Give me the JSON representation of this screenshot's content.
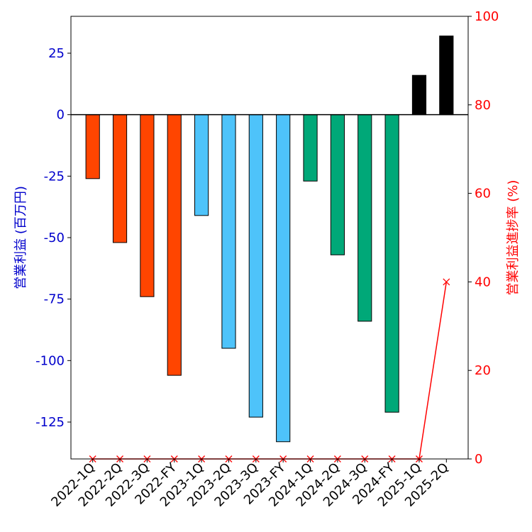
{
  "chart_data": {
    "type": "bar",
    "categories": [
      "2022-1Q",
      "2022-2Q",
      "2022-3Q",
      "2022-FY",
      "2023-1Q",
      "2023-2Q",
      "2023-3Q",
      "2023-FY",
      "2024-1Q",
      "2024-2Q",
      "2024-3Q",
      "2024-FY",
      "2025-1Q",
      "2025-2Q"
    ],
    "values": [
      -26,
      -52,
      -74,
      -106,
      -41,
      -95,
      -123,
      -133,
      -27,
      -57,
      -84,
      -121,
      16,
      32
    ],
    "bar_colors": [
      "#ff4500",
      "#ff4500",
      "#ff4500",
      "#ff4500",
      "#4ec3fa",
      "#4ec3fa",
      "#4ec3fa",
      "#4ec3fa",
      "#00a878",
      "#00a878",
      "#00a878",
      "#00a878",
      "#000000",
      "#000000"
    ],
    "line_series": {
      "axis": "right",
      "color": "#ff0000",
      "marker": "x",
      "values": [
        0,
        0,
        0,
        0,
        0,
        0,
        0,
        0,
        0,
        0,
        0,
        0,
        0,
        40
      ]
    },
    "title": "",
    "ylabel": "営業利益 (百万円)",
    "ylabel_right": "営業利益進捗率 (%)",
    "ylim": [
      -140,
      40
    ],
    "ylim_right": [
      0,
      100
    ],
    "yticks": [
      25,
      0,
      -25,
      -50,
      -75,
      -100,
      -125
    ],
    "yticks_right": [
      100,
      80,
      60,
      40,
      20,
      0
    ],
    "ylabel_color": "#0000cc",
    "ylabel_right_color": "#ff0000",
    "grid": false
  }
}
